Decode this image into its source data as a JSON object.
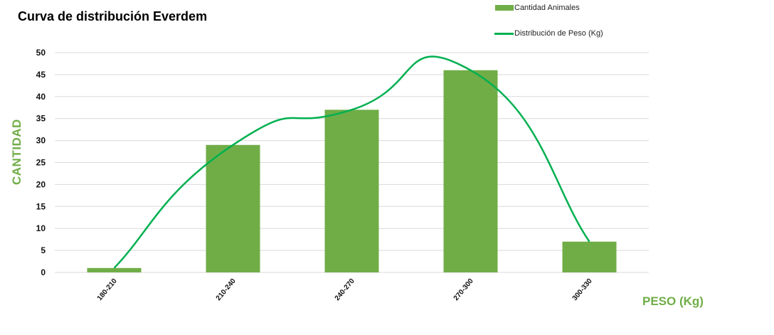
{
  "chart_data": {
    "type": "bar",
    "title": "Curva de distribución Everdem",
    "xlabel": "PESO (Kg)",
    "ylabel": "CANTIDAD",
    "categories": [
      "180-210",
      "210-240",
      "240-270",
      "270-300",
      "300-330"
    ],
    "series": [
      {
        "name": "Cantidad Animales",
        "type": "bar",
        "color": "#70AD47",
        "values": [
          1,
          29,
          37,
          46,
          7
        ]
      },
      {
        "name": "Distribución de Peso (Kg)",
        "type": "line",
        "smooth": true,
        "color": "#00B050",
        "values": [
          1,
          29,
          37,
          46,
          7
        ]
      }
    ],
    "ylim": [
      0,
      50
    ],
    "yticks": [
      0,
      5,
      10,
      15,
      20,
      25,
      30,
      35,
      40,
      45,
      50
    ],
    "grid": true,
    "legend_position": "top-right"
  },
  "legend": {
    "items": [
      {
        "label": "Cantidad Animales"
      },
      {
        "label": "Distribución de Peso (Kg)"
      }
    ]
  }
}
